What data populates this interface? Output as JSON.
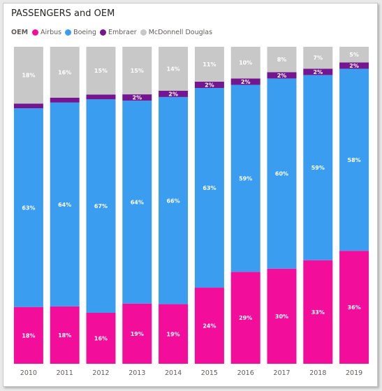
{
  "chart_data": {
    "type": "bar",
    "stacked": "100%",
    "title": "PASSENGERS and OEM",
    "legend_title": "OEM",
    "legend_position": "top-left",
    "categories": [
      "2010",
      "2011",
      "2012",
      "2013",
      "2014",
      "2015",
      "2016",
      "2017",
      "2018",
      "2019"
    ],
    "series": [
      {
        "name": "Airbus",
        "color": "#f20d9a",
        "values": [
          18,
          18,
          16,
          19,
          19,
          24,
          29,
          30,
          33,
          36
        ]
      },
      {
        "name": "Boeing",
        "color": "#3a9df0",
        "values": [
          63,
          64,
          67,
          64,
          66,
          63,
          59,
          60,
          59,
          58
        ]
      },
      {
        "name": "Embraer",
        "color": "#74168f",
        "values": [
          1.5,
          1.5,
          1.5,
          2,
          2,
          2,
          2,
          2,
          2,
          2
        ],
        "labels": [
          "",
          "",
          "",
          "2%",
          "2%",
          "2%",
          "2%",
          "2%",
          "2%",
          "2%"
        ]
      },
      {
        "name": "McDonnell Douglas",
        "color": "#c8c8c8",
        "values": [
          18,
          16,
          15,
          15,
          14,
          11,
          10,
          8,
          7,
          5
        ]
      }
    ],
    "grid": false
  }
}
